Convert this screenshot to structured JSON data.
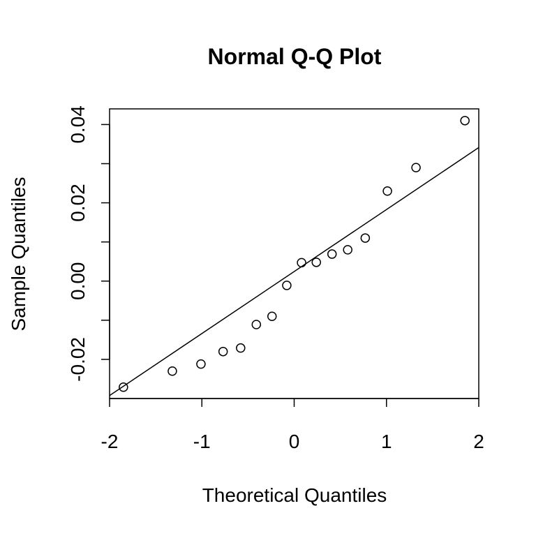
{
  "chart_data": {
    "type": "scatter",
    "title": "Normal Q-Q Plot",
    "xlabel": "Theoretical Quantiles",
    "ylabel": "Sample Quantiles",
    "xlim": [
      -2.0,
      2.0
    ],
    "ylim": [
      -0.03,
      0.044
    ],
    "xticks": [
      -2,
      -1,
      0,
      1,
      2
    ],
    "xtick_labels": [
      "-2",
      "-1",
      "0",
      "1",
      "2"
    ],
    "yticks": [
      -0.02,
      -0.01,
      0.0,
      0.01,
      0.02,
      0.03,
      0.04
    ],
    "ytick_labels": [
      "-0.02",
      "",
      "0.00",
      "",
      "0.02",
      "",
      "0.04"
    ],
    "grid": false,
    "points": [
      {
        "x": -1.85,
        "y": -0.0271
      },
      {
        "x": -1.32,
        "y": -0.023
      },
      {
        "x": -1.01,
        "y": -0.0212
      },
      {
        "x": -0.77,
        "y": -0.018
      },
      {
        "x": -0.58,
        "y": -0.0171
      },
      {
        "x": -0.41,
        "y": -0.0111
      },
      {
        "x": -0.24,
        "y": -0.009
      },
      {
        "x": -0.08,
        "y": -0.0011
      },
      {
        "x": 0.08,
        "y": 0.0047
      },
      {
        "x": 0.24,
        "y": 0.0048
      },
      {
        "x": 0.41,
        "y": 0.0069
      },
      {
        "x": 0.58,
        "y": 0.008
      },
      {
        "x": 0.77,
        "y": 0.011
      },
      {
        "x": 1.01,
        "y": 0.023
      },
      {
        "x": 1.32,
        "y": 0.029
      },
      {
        "x": 1.85,
        "y": 0.041
      }
    ],
    "reference_line": {
      "intercept": 0.00244,
      "slope": 0.01584
    }
  }
}
